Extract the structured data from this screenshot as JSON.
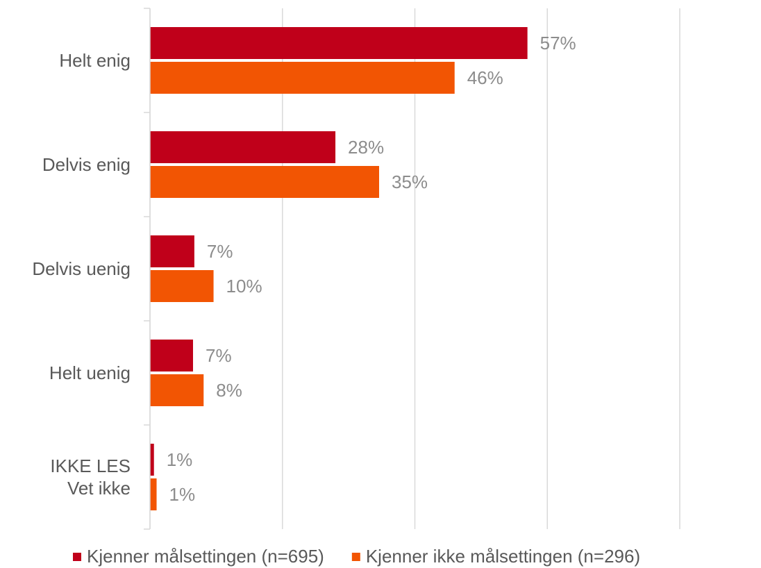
{
  "chart_data": {
    "type": "bar",
    "orientation": "horizontal",
    "categories": [
      "Helt enig",
      "Delvis enig",
      "Delvis uenig",
      "Helt uenig",
      "IKKE LES\nVet ikke"
    ],
    "series": [
      {
        "name": "Kjenner målsettingen (n=695)",
        "color": "#c0001a",
        "values": [
          57,
          28,
          6.7,
          6.5,
          0.6
        ],
        "value_labels": [
          "57%",
          "28%",
          "7%",
          "7%",
          "1%"
        ]
      },
      {
        "name": "Kjenner ikke målsettingen (n=296)",
        "color": "#f25503",
        "values": [
          46,
          34.6,
          9.6,
          8.1,
          1.0
        ],
        "value_labels": [
          "46%",
          "35%",
          "10%",
          "8%",
          "1%"
        ]
      }
    ],
    "xlim": [
      0,
      80
    ],
    "xticks": [
      0,
      20,
      40,
      60,
      80
    ],
    "grid": true,
    "legend": "bottom"
  }
}
